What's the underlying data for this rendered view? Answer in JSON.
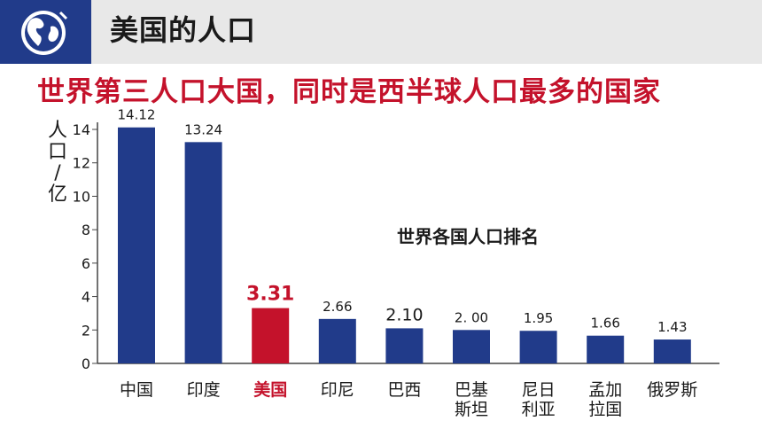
{
  "header": {
    "title": "美国的人口",
    "logo_icon": "globe-icon"
  },
  "subtitle": "世界第三人口大国，同时是西半球人口最多的国家",
  "colors": {
    "header_bg": "#e8e8e8",
    "logo_bg": "#213b8a",
    "bar_default": "#213b8a",
    "bar_highlight": "#c4122b",
    "subtitle": "#c4122b"
  },
  "chart_data": {
    "type": "bar",
    "title": "世界各国人口排名",
    "ylabel": "人口/亿",
    "ylim": [
      0,
      14
    ],
    "yticks": [
      0,
      2,
      4,
      6,
      8,
      10,
      12,
      14
    ],
    "categories": [
      "中国",
      "印度",
      "美国",
      "印尼",
      "巴西",
      "巴基斯坦",
      "尼日利亚",
      "孟加拉国",
      "俄罗斯"
    ],
    "category_lines": [
      [
        "中国"
      ],
      [
        "印度"
      ],
      [
        "美国"
      ],
      [
        "印尼"
      ],
      [
        "巴西"
      ],
      [
        "巴基",
        "斯坦"
      ],
      [
        "尼日",
        "利亚"
      ],
      [
        "孟加",
        "拉国"
      ],
      [
        "俄罗斯"
      ]
    ],
    "values": [
      14.12,
      13.24,
      3.31,
      2.66,
      2.1,
      2.0,
      1.95,
      1.66,
      1.43
    ],
    "value_labels": [
      "14.12",
      "13.24",
      "3.31",
      "2.66",
      "2.10",
      "2. 00",
      "1.95",
      "1.66",
      "1.43"
    ],
    "highlight_index": 2,
    "grid": false
  }
}
